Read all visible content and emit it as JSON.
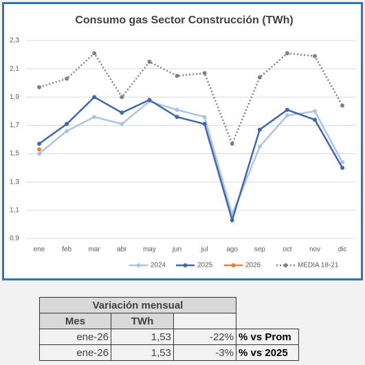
{
  "chart_data": {
    "type": "line",
    "title": "Consumo gas Sector Construcción (TWh)",
    "categories": [
      "ene",
      "feb",
      "mar",
      "abr",
      "may",
      "jun",
      "jul",
      "ago",
      "sep",
      "oct",
      "nov",
      "dic"
    ],
    "series": [
      {
        "name": "2024",
        "color": "#a9c4e8",
        "values": [
          1.5,
          1.66,
          1.76,
          1.71,
          1.87,
          1.81,
          1.76,
          1.07,
          1.55,
          1.77,
          1.8,
          1.44
        ]
      },
      {
        "name": "2025",
        "color": "#3f66b0",
        "values": [
          1.57,
          1.71,
          1.9,
          1.79,
          1.88,
          1.76,
          1.71,
          1.03,
          1.67,
          1.81,
          1.74,
          1.4
        ]
      },
      {
        "name": "2026",
        "color": "#ed7d31",
        "values": [
          1.53,
          null,
          null,
          null,
          null,
          null,
          null,
          null,
          null,
          null,
          null,
          null
        ]
      },
      {
        "name": "MEDIA 18-21",
        "color": "#808080",
        "line_style": "dotted",
        "values": [
          1.97,
          2.03,
          2.21,
          1.9,
          2.15,
          2.05,
          2.07,
          1.57,
          2.04,
          2.21,
          2.19,
          1.84
        ]
      }
    ],
    "ylim": [
      0.9,
      2.3
    ],
    "yticks": [
      {
        "value": 0.9,
        "label": "0,9"
      },
      {
        "value": 1.1,
        "label": "1,1"
      },
      {
        "value": 1.3,
        "label": "1,3"
      },
      {
        "value": 1.5,
        "label": "1,5"
      },
      {
        "value": 1.7,
        "label": "1,7"
      },
      {
        "value": 1.9,
        "label": "1,9"
      },
      {
        "value": 2.1,
        "label": "2,1"
      },
      {
        "value": 2.3,
        "label": "2,3"
      }
    ],
    "grid": true,
    "legend": "bottom"
  },
  "table": {
    "title": "Variación mensual",
    "headers": [
      "Mes",
      "TWh"
    ],
    "rows": [
      [
        "ene-26",
        "1,53",
        "-22%",
        "% vs Prom"
      ],
      [
        "ene-26",
        "1,53",
        "-3%",
        "% vs 2025"
      ]
    ]
  }
}
